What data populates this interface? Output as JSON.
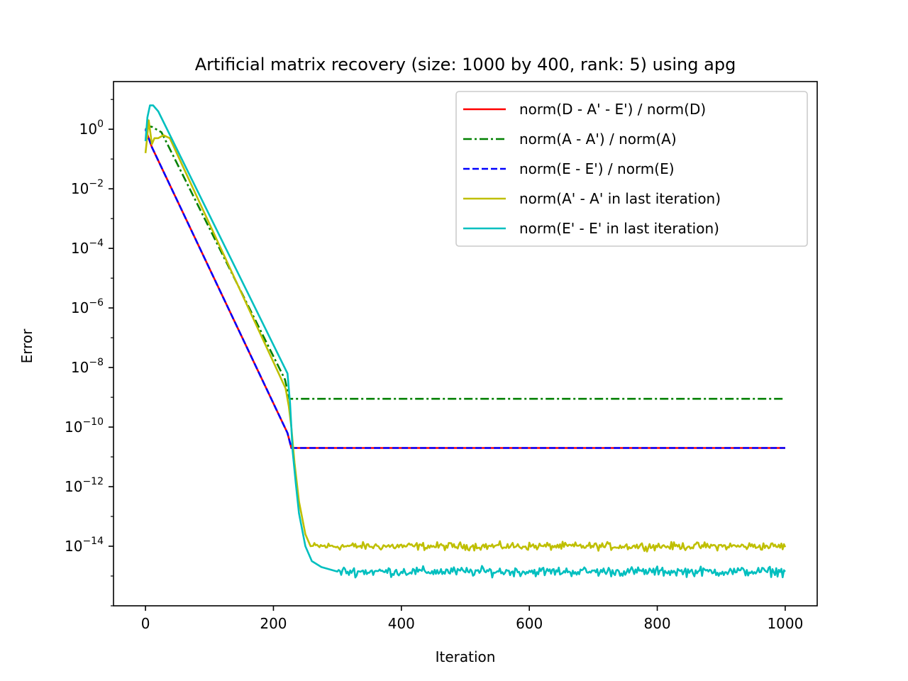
{
  "chart_data": {
    "type": "line",
    "title": "Artificial matrix recovery (size: 1000 by 400, rank: 5) using apg",
    "xlabel": "Iteration",
    "ylabel": "Error",
    "xlim": [
      -50,
      1050
    ],
    "ylim_log10": [
      -16.0,
      1.6
    ],
    "yscale": "log",
    "x_ticks": [
      0,
      200,
      400,
      600,
      800,
      1000
    ],
    "y_ticks_exponents": [
      0,
      -2,
      -4,
      -6,
      -8,
      -10,
      -12,
      -14
    ],
    "grid": false,
    "legend_position": "upper-right",
    "series": [
      {
        "name": "norm(D - A' - E') / norm(D)",
        "color": "#ff0000",
        "style": "solid",
        "points": [
          [
            0,
            0.0
          ],
          [
            10,
            -0.6
          ],
          [
            222,
            -10.2
          ],
          [
            228,
            -10.7
          ],
          [
            1000,
            -10.7
          ]
        ]
      },
      {
        "name": "norm(A - A') / norm(A)",
        "color": "#008000",
        "style": "dashdot",
        "points": [
          [
            0,
            0.0
          ],
          [
            5,
            0.1
          ],
          [
            10,
            0.08
          ],
          [
            25,
            -0.1
          ],
          [
            218,
            -8.4
          ],
          [
            225,
            -9.05
          ],
          [
            232,
            -9.05
          ],
          [
            1000,
            -9.05
          ]
        ]
      },
      {
        "name": "norm(E - E') / norm(E)",
        "color": "#0000ff",
        "style": "dashed",
        "points": [
          [
            0,
            0.0
          ],
          [
            10,
            -0.6
          ],
          [
            222,
            -10.2
          ],
          [
            228,
            -10.7
          ],
          [
            1000,
            -10.7
          ]
        ]
      },
      {
        "name": "norm(A' - A' in last iteration)",
        "color": "#bfbf00",
        "style": "solid",
        "noise_start": 260,
        "noise_level": -14.0,
        "noise_amp": 0.09,
        "points": [
          [
            0,
            -0.8
          ],
          [
            2,
            -0.4
          ],
          [
            5,
            0.3
          ],
          [
            10,
            -0.5
          ],
          [
            14,
            -0.3
          ],
          [
            20,
            -0.3
          ],
          [
            28,
            -0.2
          ],
          [
            38,
            -0.3
          ],
          [
            219,
            -8.7
          ],
          [
            224,
            -9.3
          ],
          [
            228,
            -10.0
          ],
          [
            233,
            -11.2
          ],
          [
            240,
            -12.5
          ],
          [
            250,
            -13.6
          ],
          [
            258,
            -14.0
          ]
        ]
      },
      {
        "name": "norm(E' - E' in last iteration)",
        "color": "#00bfbf",
        "style": "solid",
        "noise_start": 300,
        "noise_level": -14.85,
        "noise_amp": 0.11,
        "points": [
          [
            0,
            -0.4
          ],
          [
            3,
            0.4
          ],
          [
            7,
            0.8
          ],
          [
            12,
            0.8
          ],
          [
            20,
            0.6
          ],
          [
            222,
            -8.2
          ],
          [
            226,
            -9.2
          ],
          [
            230,
            -10.8
          ],
          [
            235,
            -11.9
          ],
          [
            240,
            -12.9
          ],
          [
            250,
            -14.0
          ],
          [
            260,
            -14.5
          ],
          [
            275,
            -14.7
          ],
          [
            300,
            -14.85
          ]
        ]
      }
    ]
  }
}
